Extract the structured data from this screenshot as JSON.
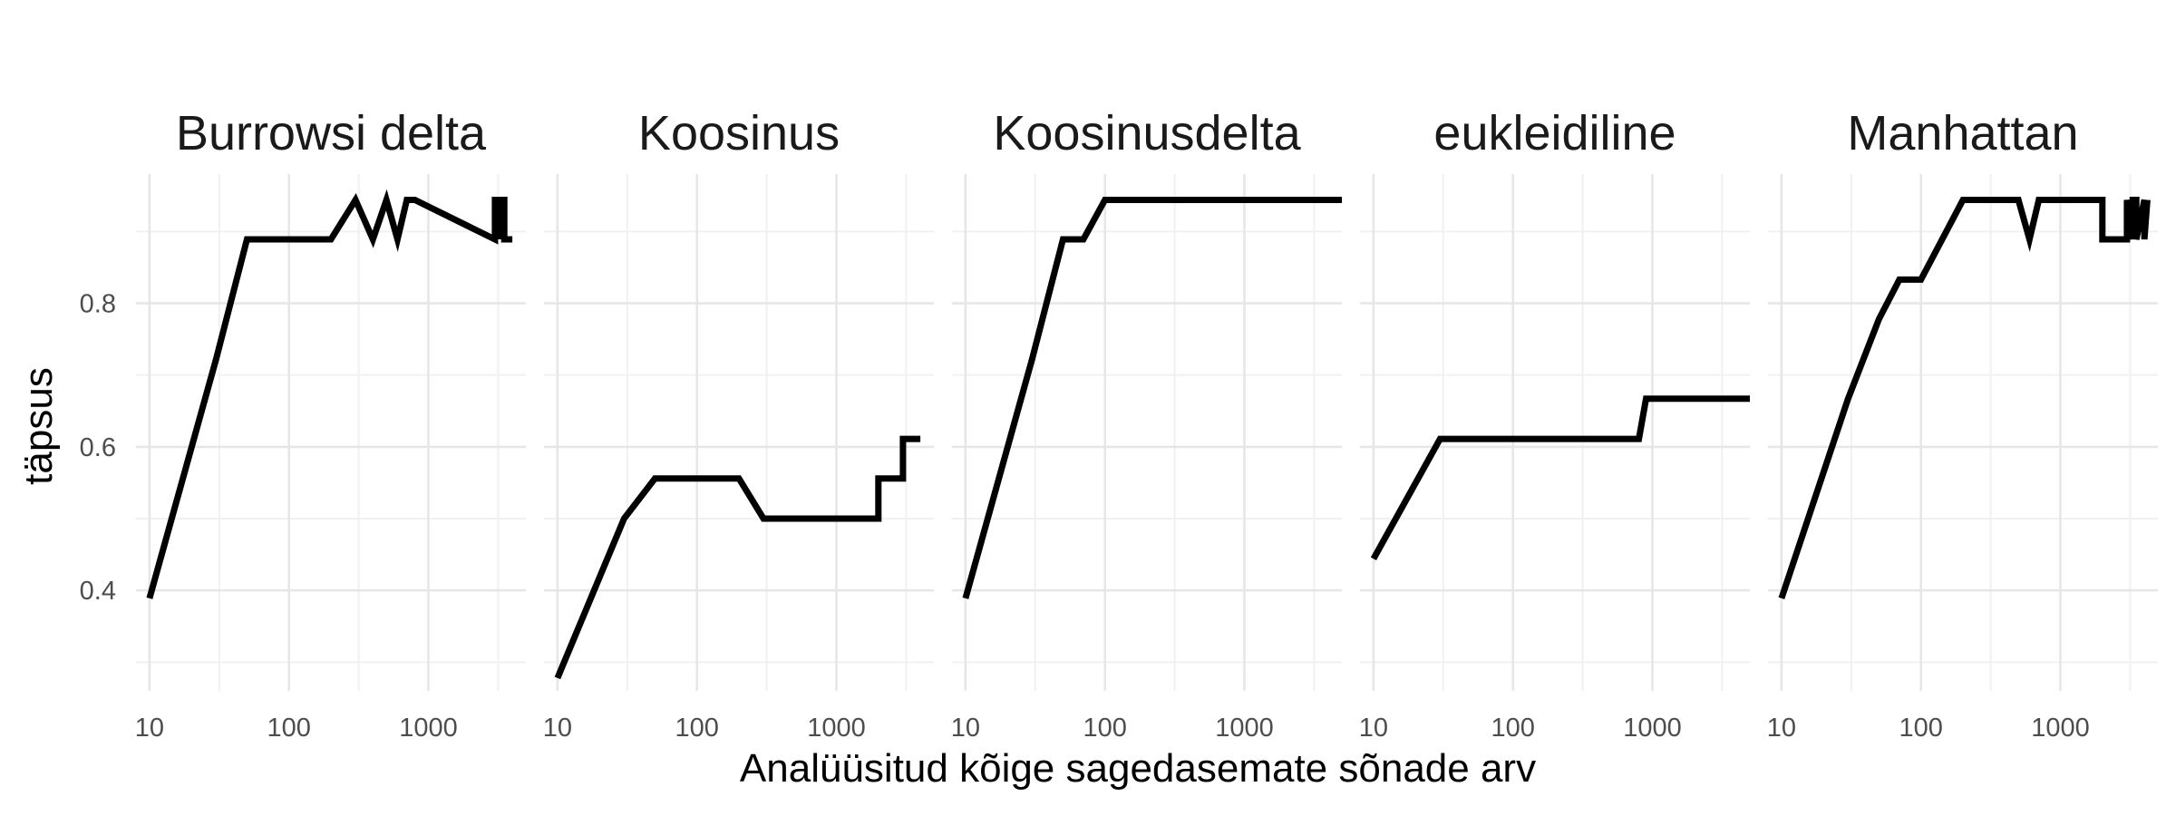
{
  "chart_data": {
    "type": "line",
    "xlabel": "Analüüsitud kõige sagedasemate sõnade arv",
    "ylabel": "täpsus",
    "x_scale": "log10",
    "xlim": [
      8,
      5000
    ],
    "ylim": [
      0.26,
      0.98
    ],
    "x_ticks": [
      10,
      100,
      1000
    ],
    "x_tick_labels": [
      "10",
      "100",
      "1000"
    ],
    "y_ticks": [
      0.4,
      0.6,
      0.8
    ],
    "y_tick_labels": [
      "0.4",
      "0.6",
      "0.8"
    ],
    "grid": true,
    "line_color": "#000000",
    "panels": [
      {
        "title": "Burrowsi delta",
        "x": [
          10,
          30,
          50,
          200,
          300,
          400,
          500,
          600,
          700,
          800,
          3000,
          3000,
          3300,
          3300,
          3300,
          3500,
          3500,
          4000
        ],
        "y": [
          0.389,
          0.722,
          0.889,
          0.889,
          0.944,
          0.889,
          0.944,
          0.889,
          0.944,
          0.944,
          0.889,
          0.944,
          0.944,
          0.889,
          0.944,
          0.944,
          0.889,
          0.889
        ]
      },
      {
        "title": "Koosinus",
        "x": [
          10,
          30,
          50,
          100,
          200,
          300,
          500,
          1000,
          2000,
          2000,
          3000,
          3000,
          4000
        ],
        "y": [
          0.278,
          0.5,
          0.556,
          0.556,
          0.556,
          0.5,
          0.5,
          0.5,
          0.5,
          0.556,
          0.556,
          0.611,
          0.611
        ]
      },
      {
        "title": "Koosinusdelta",
        "x": [
          10,
          30,
          50,
          70,
          100,
          200,
          5000
        ],
        "y": [
          0.389,
          0.722,
          0.889,
          0.889,
          0.944,
          0.944,
          0.944
        ]
      },
      {
        "title": "eukleidiline",
        "x": [
          10,
          30,
          50,
          100,
          500,
          800,
          900,
          5000
        ],
        "y": [
          0.444,
          0.611,
          0.611,
          0.611,
          0.611,
          0.611,
          0.667,
          0.667
        ]
      },
      {
        "title": "Manhattan",
        "x": [
          10,
          30,
          50,
          70,
          100,
          200,
          400,
          500,
          600,
          700,
          1000,
          2000,
          2000,
          3000,
          3000,
          3200,
          3300,
          3500,
          3500,
          4000,
          4000,
          4200
        ],
        "y": [
          0.389,
          0.667,
          0.778,
          0.833,
          0.833,
          0.944,
          0.944,
          0.944,
          0.889,
          0.944,
          0.944,
          0.944,
          0.889,
          0.889,
          0.944,
          0.889,
          0.944,
          0.944,
          0.889,
          0.944,
          0.889,
          0.944
        ]
      }
    ]
  }
}
